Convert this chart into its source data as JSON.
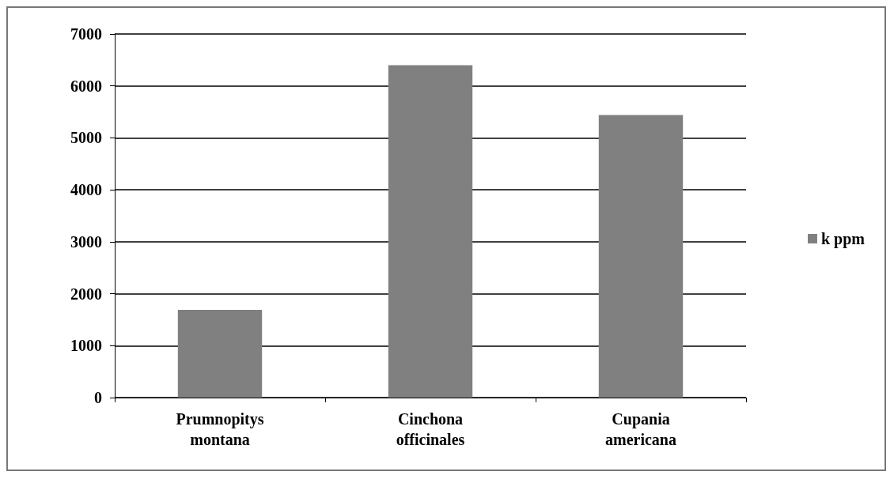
{
  "chart_data": {
    "type": "bar",
    "categories": [
      "Prumnopitys\nmontana",
      "Cinchona\nofficinales",
      "Cupania\namericana"
    ],
    "series": [
      {
        "name": "k ppm",
        "color": "#808080",
        "values": [
          1690,
          6400,
          5440
        ]
      }
    ],
    "ylim": [
      0,
      7000
    ],
    "yticks": [
      0,
      1000,
      2000,
      3000,
      4000,
      5000,
      6000,
      7000
    ],
    "grid": "y",
    "legend": "right"
  }
}
